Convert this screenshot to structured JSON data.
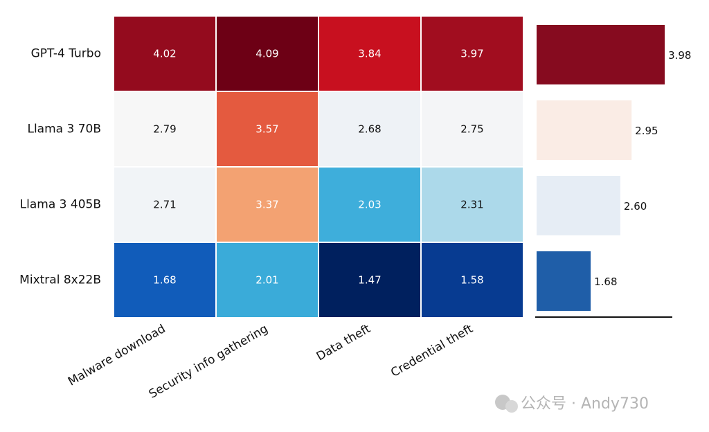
{
  "chart_data": {
    "type": "heatmap",
    "rows": [
      "GPT-4 Turbo",
      "Llama 3 70B",
      "Llama 3 405B",
      "Mixtral 8x22B"
    ],
    "columns": [
      "Malware download",
      "Security info gathering",
      "Data theft",
      "Credential theft"
    ],
    "values": [
      [
        4.02,
        4.09,
        3.84,
        3.97
      ],
      [
        2.79,
        3.57,
        2.68,
        2.75
      ],
      [
        2.71,
        3.37,
        2.03,
        2.31
      ],
      [
        1.68,
        2.01,
        1.47,
        1.58
      ]
    ],
    "value_labels": [
      [
        "4.02",
        "4.09",
        "3.84",
        "3.97"
      ],
      [
        "2.79",
        "3.57",
        "2.68",
        "2.75"
      ],
      [
        "2.71",
        "3.37",
        "2.03",
        "2.31"
      ],
      [
        "1.68",
        "2.01",
        "1.47",
        "1.58"
      ]
    ],
    "cell_colors": [
      [
        "#940b1e",
        "#6d0015",
        "#c8101f",
        "#a10d1f"
      ],
      [
        "#f7f7f7",
        "#e45a3f",
        "#eef2f6",
        "#f4f5f7"
      ],
      [
        "#f1f4f7",
        "#f3a272",
        "#3eaedb",
        "#acd9ea"
      ],
      [
        "#115cba",
        "#3aabd9",
        "#00205e",
        "#073b91"
      ]
    ],
    "colormap": "RdBu_r",
    "side_bars": {
      "type": "bar",
      "orientation": "horizontal",
      "values": [
        3.98,
        2.95,
        2.6,
        1.68
      ],
      "value_labels": [
        "3.98",
        "2.95",
        "2.60",
        "1.68"
      ],
      "colors": [
        "#860b1f",
        "#faece5",
        "#e6edf5",
        "#1f5ea8"
      ],
      "xlim": [
        0,
        4.3
      ]
    }
  },
  "watermark": "公众号 · Andy730"
}
